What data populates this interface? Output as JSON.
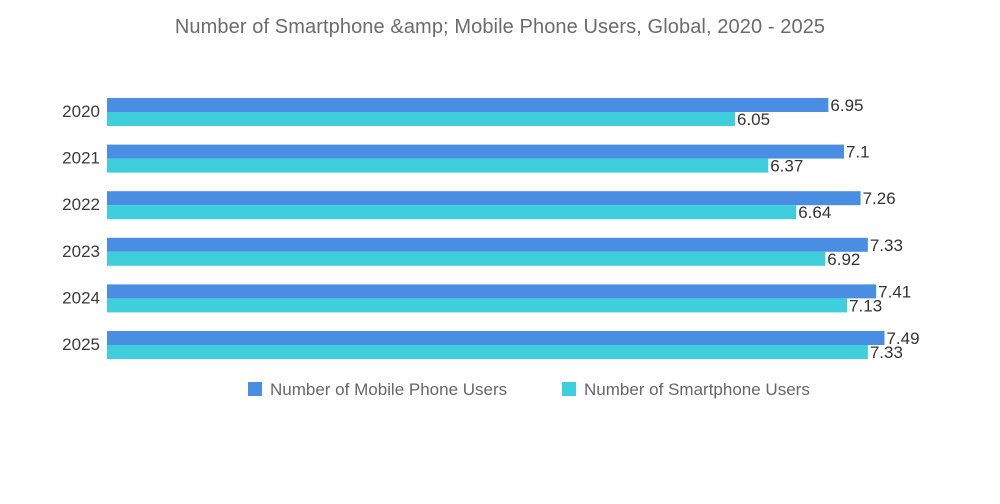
{
  "chart_data": {
    "type": "bar",
    "orientation": "horizontal",
    "title": "Number of Smartphone &amp; Mobile Phone Users, Global, 2020 - 2025",
    "categories": [
      "2020",
      "2021",
      "2022",
      "2023",
      "2024",
      "2025"
    ],
    "series": [
      {
        "name": "Number of Mobile Phone Users",
        "color": "#4a8ee3",
        "values": [
          6.95,
          7.1,
          7.26,
          7.33,
          7.41,
          7.49
        ]
      },
      {
        "name": "Number of Smartphone Users",
        "color": "#3fcfdc",
        "values": [
          6.05,
          6.37,
          6.64,
          6.92,
          7.13,
          7.33
        ]
      }
    ],
    "xlim": [
      0,
      8
    ],
    "grid": false,
    "legend_position": "bottom"
  }
}
